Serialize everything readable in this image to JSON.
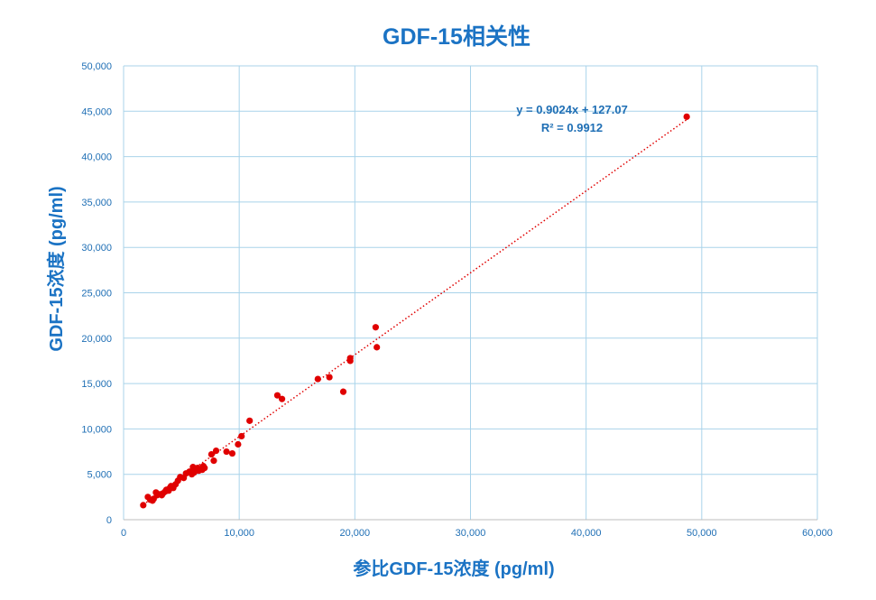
{
  "chart_data": {
    "type": "scatter",
    "title": "GDF-15相关性",
    "xlabel": "参比GDF-15浓度 (pg/ml)",
    "ylabel": "GDF-15浓度 (pg/ml)",
    "xlim": [
      0,
      60000
    ],
    "ylim": [
      0,
      50000
    ],
    "x_ticks": [
      0,
      10000,
      20000,
      30000,
      40000,
      50000,
      60000
    ],
    "y_ticks": [
      0,
      5000,
      10000,
      15000,
      20000,
      25000,
      30000,
      35000,
      40000,
      45000,
      50000
    ],
    "x_tick_labels": [
      "0",
      "10,000",
      "20,000",
      "30,000",
      "40,000",
      "50,000",
      "60,000"
    ],
    "y_tick_labels": [
      "0",
      "5,000",
      "10,000",
      "15,000",
      "20,000",
      "25,000",
      "30,000",
      "35,000",
      "40,000",
      "45,000",
      "50,000"
    ],
    "grid": true,
    "point_color": "#e00000",
    "trendline": {
      "slope": 0.9024,
      "intercept": 127.07,
      "equation": "y = 0.9024x + 127.07",
      "r_squared": "R² = 0.9912",
      "color": "#e00000",
      "style": "dotted"
    },
    "points": [
      [
        1700,
        1600
      ],
      [
        2100,
        2500
      ],
      [
        2300,
        2200
      ],
      [
        2500,
        2100
      ],
      [
        2600,
        2300
      ],
      [
        2800,
        3000
      ],
      [
        2900,
        2700
      ],
      [
        3100,
        2800
      ],
      [
        3300,
        2700
      ],
      [
        3400,
        2900
      ],
      [
        3600,
        3100
      ],
      [
        3700,
        3300
      ],
      [
        3900,
        3200
      ],
      [
        4000,
        3500
      ],
      [
        4100,
        3700
      ],
      [
        4300,
        3500
      ],
      [
        4500,
        3900
      ],
      [
        4700,
        4300
      ],
      [
        4900,
        4700
      ],
      [
        5200,
        4600
      ],
      [
        5400,
        5100
      ],
      [
        5700,
        5300
      ],
      [
        5900,
        5000
      ],
      [
        6000,
        5800
      ],
      [
        6100,
        5200
      ],
      [
        6200,
        5600
      ],
      [
        6400,
        5700
      ],
      [
        6500,
        5400
      ],
      [
        6800,
        5500
      ],
      [
        6900,
        5900
      ],
      [
        7000,
        5700
      ],
      [
        7600,
        7200
      ],
      [
        7800,
        6500
      ],
      [
        8000,
        7600
      ],
      [
        8900,
        7500
      ],
      [
        9400,
        7300
      ],
      [
        9900,
        8300
      ],
      [
        10200,
        9200
      ],
      [
        10900,
        10900
      ],
      [
        13300,
        13700
      ],
      [
        13700,
        13300
      ],
      [
        16800,
        15500
      ],
      [
        17800,
        15700
      ],
      [
        19000,
        14100
      ],
      [
        19600,
        17500
      ],
      [
        19600,
        17800
      ],
      [
        21800,
        21200
      ],
      [
        21900,
        19000
      ],
      [
        48700,
        44400
      ]
    ]
  }
}
